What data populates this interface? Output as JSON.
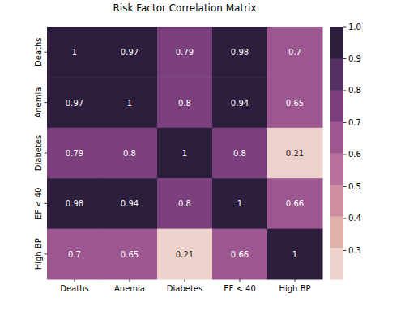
{
  "chart_data": {
    "type": "heatmap",
    "title": "Risk Factor Correlation Matrix",
    "categories": [
      "Deaths",
      "Anemia",
      "Diabetes",
      "EF < 40",
      "High BP"
    ],
    "cells": [
      [
        1,
        0.97,
        0.79,
        0.98,
        0.7
      ],
      [
        0.97,
        1,
        0.8,
        0.94,
        0.65
      ],
      [
        0.79,
        0.8,
        1,
        0.8,
        0.21
      ],
      [
        0.98,
        0.94,
        0.8,
        1,
        0.66
      ],
      [
        0.7,
        0.65,
        0.21,
        0.66,
        1
      ]
    ],
    "data_labels": true,
    "colorbar": {
      "range": [
        0.21,
        1
      ],
      "ticks": [
        0.3,
        0.4,
        0.5,
        0.6,
        0.7,
        0.8,
        0.9,
        {
          "value": 1,
          "label": "1.0"
        }
      ]
    }
  }
}
